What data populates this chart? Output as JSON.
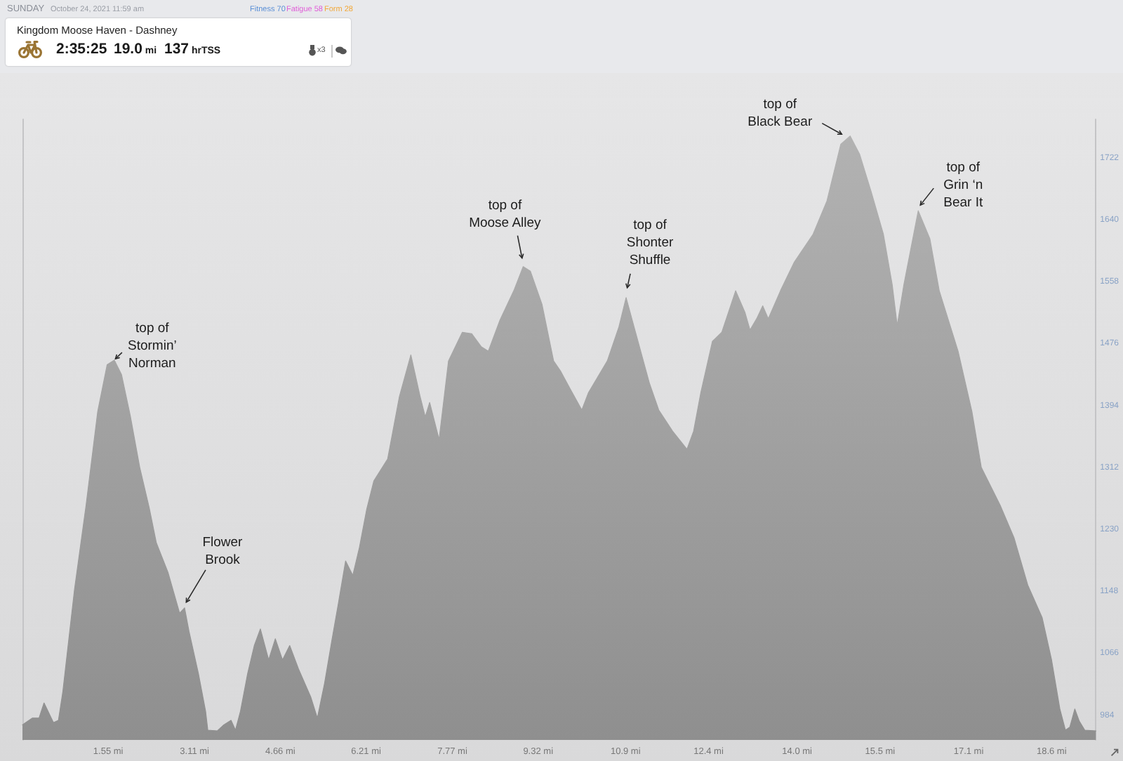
{
  "chart_data": {
    "type": "area",
    "title": "Kingdom Moose Haven - Dashney",
    "subtitle": "SUNDAY",
    "annotations": [
      "October 24, 2021",
      "11:59 am",
      "Fitness 70",
      "Fatigue 58",
      "Form 28",
      "2:35:25",
      "19.0 mi",
      "137 hrTSS",
      "x3",
      {
        "text": "top of\nStormin’\nNorman",
        "x": 1.66,
        "y": 1455
      },
      {
        "text": "Flower\nBrook",
        "x": 2.93,
        "y": 1127
      },
      {
        "text": "top of\nMoose Alley",
        "x": 9.05,
        "y": 1579
      },
      {
        "text": "top of\nShonter\nShuffle",
        "x": 10.91,
        "y": 1538
      },
      {
        "text": "top of\nBlack Bear",
        "x": 14.96,
        "y": 1752
      },
      {
        "text": "top of\nGrin ‘n\nBear It",
        "x": 16.19,
        "y": 1653
      }
    ],
    "x": [
      0,
      0.18,
      0.3,
      0.39,
      0.56,
      0.65,
      0.73,
      0.94,
      1.15,
      1.36,
      1.53,
      1.66,
      1.79,
      1.95,
      2.12,
      2.29,
      2.42,
      2.63,
      2.84,
      2.93,
      3.01,
      3.18,
      3.31,
      3.35,
      3.52,
      3.64,
      3.77,
      3.85,
      3.94,
      4.07,
      4.19,
      4.3,
      4.45,
      4.57,
      4.7,
      4.83,
      4.99,
      5.21,
      5.33,
      5.46,
      5.59,
      5.71,
      5.84,
      5.97,
      6.09,
      6.22,
      6.35,
      6.6,
      6.81,
      7.02,
      7.19,
      7.28,
      7.36,
      7.53,
      7.7,
      7.95,
      8.12,
      8.29,
      8.42,
      8.63,
      8.88,
      9.05,
      9.18,
      9.39,
      9.6,
      9.73,
      9.9,
      10.11,
      10.23,
      10.57,
      10.78,
      10.91,
      11.08,
      11.33,
      11.5,
      11.75,
      12.01,
      12.13,
      12.26,
      12.47,
      12.64,
      12.89,
      13.06,
      13.15,
      13.27,
      13.38,
      13.48,
      13.7,
      13.95,
      14.29,
      14.54,
      14.79,
      14.96,
      15.13,
      15.34,
      15.56,
      15.72,
      15.81,
      15.93,
      16.19,
      16.4,
      16.57,
      16.91,
      17.16,
      17.33,
      17.67,
      17.92,
      18.17,
      18.43,
      18.6,
      18.75,
      18.85,
      18.93,
      19.02,
      19.1,
      19.2,
      19.4
    ],
    "values": [
      972,
      981,
      981,
      1001,
      975,
      978,
      1016,
      1151,
      1263,
      1387,
      1449,
      1455,
      1436,
      1381,
      1313,
      1260,
      1213,
      1174,
      1120,
      1127,
      1096,
      1040,
      990,
      965,
      964,
      972,
      978,
      965,
      990,
      1040,
      1077,
      1099,
      1058,
      1086,
      1058,
      1077,
      1046,
      1009,
      981,
      1027,
      1083,
      1133,
      1189,
      1170,
      1207,
      1257,
      1295,
      1324,
      1406,
      1462,
      1406,
      1380,
      1399,
      1350,
      1454,
      1492,
      1490,
      1473,
      1467,
      1508,
      1547,
      1579,
      1573,
      1529,
      1454,
      1440,
      1417,
      1389,
      1412,
      1454,
      1499,
      1538,
      1492,
      1425,
      1389,
      1361,
      1337,
      1361,
      1412,
      1480,
      1492,
      1547,
      1518,
      1495,
      1510,
      1527,
      1510,
      1547,
      1585,
      1622,
      1666,
      1741,
      1752,
      1728,
      1678,
      1622,
      1555,
      1501,
      1555,
      1653,
      1616,
      1547,
      1467,
      1387,
      1313,
      1263,
      1220,
      1157,
      1114,
      1058,
      993,
      965,
      969,
      993,
      977,
      965,
      964
    ],
    "color": "#a3a3a3",
    "xlim": [
      0,
      19.4
    ],
    "xticks": [
      {
        "value": 1.55,
        "label": "1.55 mi"
      },
      {
        "value": 3.11,
        "label": "3.11 mi"
      },
      {
        "value": 4.66,
        "label": "4.66 mi"
      },
      {
        "value": 6.21,
        "label": "6.21 mi"
      },
      {
        "value": 7.77,
        "label": "7.77 mi"
      },
      {
        "value": 9.32,
        "label": "9.32 mi"
      },
      {
        "value": 10.9,
        "label": "10.9 mi"
      },
      {
        "value": 12.4,
        "label": "12.4 mi"
      },
      {
        "value": 14.0,
        "label": "14.0 mi"
      },
      {
        "value": 15.5,
        "label": "15.5 mi"
      },
      {
        "value": 17.1,
        "label": "17.1 mi"
      },
      {
        "value": 18.6,
        "label": "18.6 mi"
      }
    ],
    "ylim": [
      952,
      1774
    ],
    "yticks": [
      984,
      1066,
      1148,
      1230,
      1312,
      1394,
      1476,
      1558,
      1640,
      1722
    ],
    "grid": false
  }
}
